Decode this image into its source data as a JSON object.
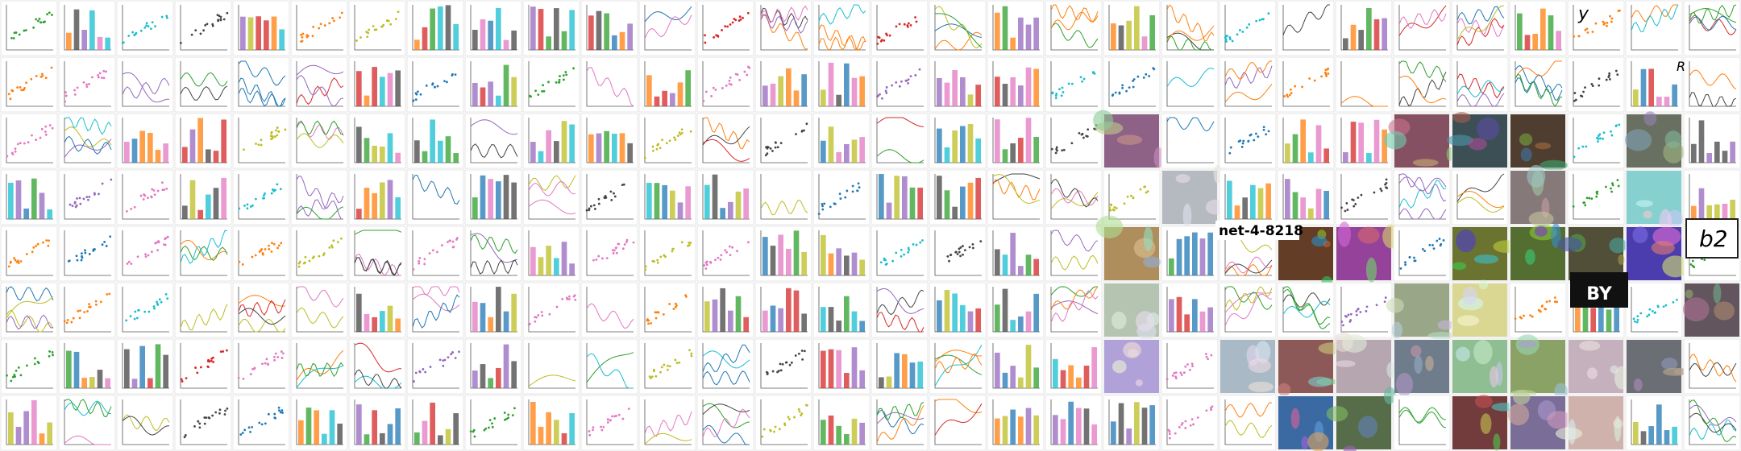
{
  "mosaic": {
    "labels": [
      "net-4-8218",
      "BY",
      "b2",
      "y",
      "R"
    ]
  }
}
